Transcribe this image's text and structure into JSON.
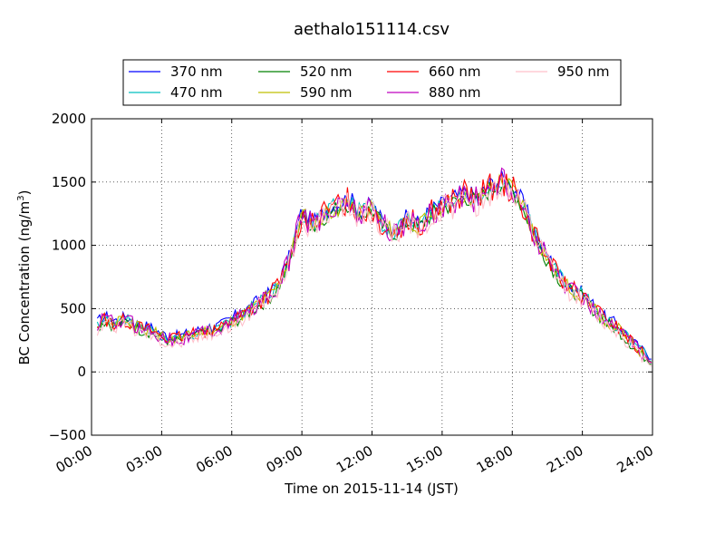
{
  "chart_data": {
    "type": "line",
    "title": "aethalo151114.csv",
    "xlabel": "Time on 2015-11-14 (JST)",
    "ylabel": "BC Concentration (ng/m",
    "ylabel_sup": "3",
    "ylabel_close": ")",
    "xlim": [
      "00:00",
      "24:00"
    ],
    "ylim": [
      -500,
      2000
    ],
    "x_ticks": [
      "00:00",
      "03:00",
      "06:00",
      "09:00",
      "12:00",
      "15:00",
      "18:00",
      "21:00",
      "24:00"
    ],
    "y_ticks": [
      "−500",
      "0",
      "500",
      "1000",
      "1500",
      "2000"
    ],
    "y_tick_values": [
      -500,
      0,
      500,
      1000,
      1500,
      2000
    ],
    "grid": true,
    "legend_position": "top",
    "series": [
      {
        "name": "370 nm",
        "color": "#0000ff",
        "offset": 25
      },
      {
        "name": "470 nm",
        "color": "#00bfbf",
        "offset": 10
      },
      {
        "name": "520 nm",
        "color": "#008000",
        "offset": -15
      },
      {
        "name": "590 nm",
        "color": "#bfbf00",
        "offset": 0
      },
      {
        "name": "660 nm",
        "color": "#ff0000",
        "offset": 5
      },
      {
        "name": "880 nm",
        "color": "#bf00bf",
        "offset": 0
      },
      {
        "name": "950 nm",
        "color": "#ffc0cb",
        "offset": -25
      }
    ],
    "x_hours": [
      0,
      0.5,
      1,
      1.5,
      2,
      2.5,
      3,
      3.5,
      4,
      4.5,
      5,
      5.5,
      6,
      6.5,
      7,
      7.5,
      8,
      8.5,
      9,
      9.5,
      10,
      10.5,
      11,
      11.5,
      12,
      12.5,
      13,
      13.5,
      14,
      14.5,
      15,
      15.5,
      16,
      16.5,
      17,
      17.5,
      18,
      18.5,
      19,
      19.5,
      20,
      20.5,
      21,
      21.5,
      22,
      22.5,
      23,
      23.5,
      24
    ],
    "base_values": [
      300,
      420,
      380,
      410,
      350,
      330,
      280,
      250,
      270,
      300,
      330,
      340,
      400,
      450,
      520,
      580,
      680,
      900,
      1250,
      1150,
      1250,
      1300,
      1350,
      1250,
      1300,
      1150,
      1100,
      1200,
      1150,
      1250,
      1300,
      1350,
      1400,
      1350,
      1450,
      1500,
      1450,
      1300,
      1050,
      900,
      750,
      650,
      600,
      500,
      400,
      350,
      250,
      150,
      100
    ]
  }
}
